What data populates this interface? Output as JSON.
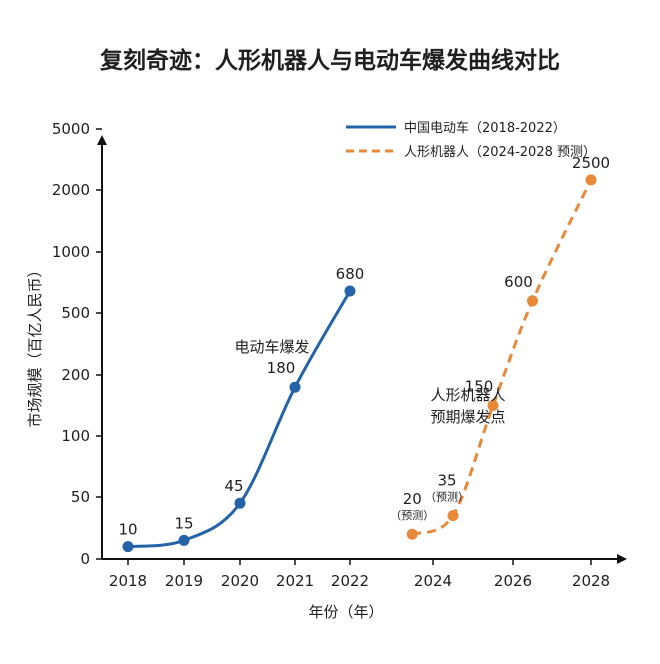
{
  "chart_data": {
    "type": "line",
    "title": "复刻奇迹：人形机器人与电动车爆发曲线对比",
    "xlabel": "年份（年）",
    "ylabel": "市场规模（百亿人民币）",
    "x_ticks": [
      "2018",
      "2019",
      "2020",
      "2021",
      "2022",
      "2024",
      "2026",
      "2028"
    ],
    "y_ticks": [
      "0",
      "50",
      "100",
      "200",
      "500",
      "1000",
      "2000",
      "5000"
    ],
    "y_scale_note": "non-linear, evenly spaced ticks",
    "series": [
      {
        "name": "中国电动车（2018-2022）",
        "style": "solid",
        "color": "#2563a8",
        "points": [
          {
            "x": "2018",
            "y": 10,
            "label": "10"
          },
          {
            "x": "2019",
            "y": 15,
            "label": "15"
          },
          {
            "x": "2020",
            "y": 45,
            "label": "45"
          },
          {
            "x": "2021",
            "y": 180,
            "label": "180"
          },
          {
            "x": "2022",
            "y": 680,
            "label": "680"
          }
        ]
      },
      {
        "name": "人形机器人（2024-2028 预测）",
        "style": "dashed",
        "color": "#e8893a",
        "points": [
          {
            "x": "2023.5",
            "y": 20,
            "label": "20",
            "note": "（预测）"
          },
          {
            "x": "2024.5",
            "y": 35,
            "label": "35",
            "note": "（预测）"
          },
          {
            "x": "2025.5",
            "y": 150,
            "label": "150"
          },
          {
            "x": "2026.5",
            "y": 600,
            "label": "600"
          },
          {
            "x": "2028",
            "y": 2500,
            "label": "2500"
          }
        ]
      }
    ],
    "annotations": [
      {
        "lines": [
          "电动车爆发"
        ],
        "near": "electric vehicle curve"
      },
      {
        "lines": [
          "人形机器人",
          "预期爆发点"
        ],
        "near": "robot curve"
      }
    ],
    "legend_position": "top-right",
    "grid": false
  }
}
